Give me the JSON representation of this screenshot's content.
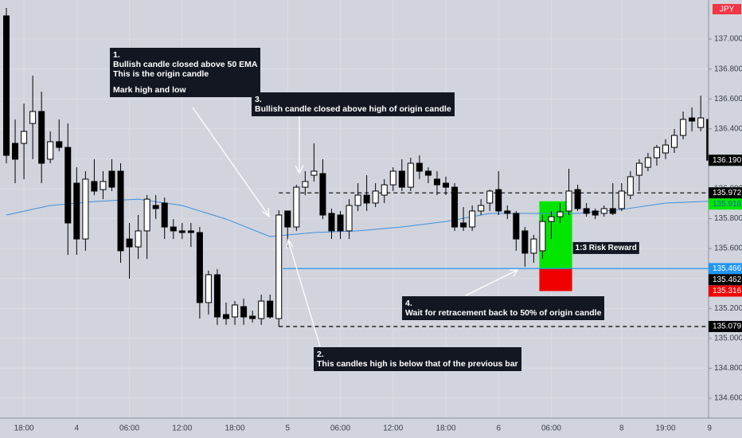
{
  "chart_data": {
    "type": "candlestick",
    "symbol": "JPY",
    "categories": [
      null,
      null,
      "18:00",
      null,
      null,
      null,
      null,
      null,
      "4",
      null,
      null,
      null,
      null,
      null,
      "06:00",
      null,
      null,
      null,
      null,
      null,
      "12:00",
      null,
      null,
      null,
      null,
      null,
      "18:00",
      null,
      null,
      null,
      null,
      null,
      "5",
      null,
      null,
      null,
      null,
      null,
      "06:00",
      null,
      null,
      null,
      null,
      null,
      "12:00",
      null,
      null,
      null,
      null,
      null,
      "18:00",
      null,
      null,
      null,
      null,
      null,
      "6",
      null,
      null,
      null,
      null,
      null,
      "06:00",
      null,
      null,
      null,
      null,
      null,
      null,
      null,
      "8",
      null,
      null,
      null,
      null,
      "19:00",
      null,
      null,
      null,
      null,
      "9"
    ],
    "open": [
      137.155,
      136.303,
      136.303,
      136.436,
      136.516,
      136.197,
      136.314,
      136.276,
      136.037,
      135.664,
      136.048,
      135.994,
      136.117,
      136.117,
      135.664,
      135.611,
      135.718,
      135.888,
      135.904,
      135.744,
      135.718,
      135.718,
      135.707,
      135.239,
      135.425,
      135.159,
      135.143,
      135.212,
      135.148,
      135.132,
      135.249,
      135.132,
      135.851,
      135.744,
      136.01,
      136.09,
      136.101,
      135.835,
      135.824,
      135.718,
      135.888,
      135.957,
      135.904,
      135.957,
      136.026,
      136.117,
      136.01,
      136.17,
      136.117,
      136.064,
      136.037,
      136.01,
      135.771,
      135.744,
      135.851,
      135.904,
      135.994,
      135.851,
      135.835,
      135.718,
      135.569,
      135.585,
      135.781,
      135.813,
      135.851,
      135.994,
      135.867,
      135.851,
      135.835,
      135.867,
      135.867,
      135.957,
      136.09,
      136.143,
      136.207,
      136.239,
      136.276,
      136.356,
      136.473,
      136.409,
      136.463
    ],
    "high": [
      137.208,
      136.463,
      136.569,
      136.755,
      136.649,
      136.383,
      136.463,
      136.436,
      136.143,
      136.117,
      136.197,
      136.117,
      136.197,
      136.17,
      135.771,
      135.824,
      135.957,
      135.957,
      135.941,
      135.797,
      135.771,
      135.771,
      135.744,
      135.452,
      135.462,
      135.239,
      135.249,
      135.265,
      135.185,
      135.292,
      135.292,
      135.856,
      135.845,
      136.026,
      136.117,
      136.303,
      136.197,
      135.867,
      135.851,
      135.93,
      136.037,
      136.09,
      136.037,
      136.064,
      136.143,
      136.197,
      136.207,
      136.223,
      136.143,
      136.117,
      136.08,
      136.037,
      135.877,
      135.888,
      135.93,
      135.994,
      136.117,
      135.888,
      135.851,
      135.744,
      135.691,
      135.824,
      135.851,
      135.904,
      136.133,
      136.026,
      135.904,
      135.867,
      135.888,
      136.037,
      136.037,
      136.117,
      136.197,
      136.239,
      136.292,
      136.33,
      136.399,
      136.516,
      136.543,
      136.622,
      136.473
    ],
    "low": [
      136.17,
      136.037,
      136.064,
      136.197,
      136.037,
      136.17,
      136.25,
      135.558,
      135.558,
      135.585,
      135.957,
      135.93,
      135.984,
      135.505,
      135.398,
      135.531,
      135.531,
      135.797,
      135.664,
      135.664,
      135.664,
      135.611,
      135.132,
      135.159,
      135.09,
      135.09,
      135.09,
      135.09,
      135.106,
      135.09,
      135.132,
      135.079,
      135.611,
      135.718,
      135.957,
      136.048,
      135.797,
      135.664,
      135.664,
      135.664,
      135.851,
      135.851,
      135.877,
      135.904,
      135.984,
      135.984,
      135.984,
      136.064,
      136.037,
      135.957,
      135.957,
      135.718,
      135.718,
      135.718,
      135.824,
      135.851,
      135.824,
      135.797,
      135.585,
      135.478,
      135.505,
      135.531,
      135.664,
      135.771,
      135.824,
      135.851,
      135.813,
      135.797,
      135.813,
      135.824,
      135.851,
      135.93,
      135.984,
      136.117,
      136.154,
      136.197,
      136.239,
      136.33,
      136.383,
      136.383,
      136.17
    ],
    "close": [
      136.223,
      136.197,
      136.383,
      136.516,
      136.17,
      136.314,
      136.276,
      135.771,
      135.664,
      136.064,
      135.984,
      136.048,
      136.01,
      135.585,
      135.611,
      135.718,
      135.93,
      135.867,
      135.744,
      135.718,
      135.707,
      135.707,
      135.239,
      135.425,
      135.143,
      135.132,
      135.223,
      135.143,
      135.132,
      135.249,
      135.143,
      135.824,
      135.744,
      136.01,
      136.048,
      136.117,
      135.824,
      135.718,
      135.718,
      135.888,
      135.957,
      135.904,
      135.984,
      136.026,
      136.117,
      136.01,
      136.17,
      136.117,
      136.09,
      136.026,
      136.01,
      135.744,
      135.744,
      135.851,
      135.888,
      135.984,
      135.851,
      135.835,
      135.664,
      135.569,
      135.664,
      135.781,
      135.813,
      135.845,
      135.984,
      135.867,
      135.835,
      135.824,
      135.867,
      135.835,
      135.984,
      136.08,
      136.17,
      136.207,
      136.276,
      136.292,
      136.356,
      136.463,
      136.452,
      136.473,
      136.19
    ],
    "up_color": "#ffffff",
    "down_color": "#000000",
    "ema": {
      "color": "#3d8fe0",
      "x": [
        0,
        5,
        10,
        15,
        20,
        25,
        30,
        35,
        40,
        45,
        50,
        55,
        60,
        65,
        70,
        75,
        80
      ],
      "values": [
        135.824,
        135.888,
        135.914,
        135.93,
        135.888,
        135.797,
        135.68,
        135.707,
        135.718,
        135.744,
        135.781,
        135.835,
        135.835,
        135.835,
        135.861,
        135.904,
        135.916
      ]
    },
    "ylim": [
      134.467,
      137.261
    ],
    "yticks": [
      {
        "value": 134.6,
        "label": "134.600"
      },
      {
        "value": 134.8,
        "label": "134.800"
      },
      {
        "value": 135.0,
        "label": "135.000"
      },
      {
        "value": 135.2,
        "label": "135.200"
      },
      {
        "value": 135.4,
        "label": "135.400"
      },
      {
        "value": 135.6,
        "label": "135.600"
      },
      {
        "value": 135.8,
        "label": "135.800"
      },
      {
        "value": 136.0,
        "label": "136.000"
      },
      {
        "value": 136.2,
        "label": "136.200"
      },
      {
        "value": 136.4,
        "label": "136.400"
      },
      {
        "value": 136.6,
        "label": "136.600"
      },
      {
        "value": 136.8,
        "label": "136.800"
      },
      {
        "value": 137.0,
        "label": "137.000"
      }
    ],
    "grid": true,
    "levels": [
      {
        "value": 135.972,
        "label": "135.972"
      },
      {
        "value": 135.079,
        "label": "135.079"
      }
    ],
    "last_price": {
      "value": 136.19,
      "label": "136.190",
      "color": "#000000"
    },
    "other_price": {
      "value": 135.462,
      "label": "135.462",
      "color": "#000000"
    },
    "position": {
      "label": "1:3 Risk Reward",
      "start": 61,
      "end": 64,
      "entry": {
        "value": 135.466,
        "label": "135.466",
        "color": "#2196f3"
      },
      "target": {
        "value": 135.916,
        "label": "135.916",
        "color": "#00e600"
      },
      "stop": {
        "value": 135.316,
        "label": "135.316",
        "color": "#f00000"
      }
    },
    "annotations": [
      {
        "lines": [
          "1.",
          "Bullish candle closed above 50 EMA",
          "This is the origin candle",
          "Mark high and low"
        ]
      },
      {
        "lines": [
          "2.",
          "This candles high is below that of the previous bar"
        ]
      },
      {
        "lines": [
          "3.",
          "Bullish candle closed above high of origin candle"
        ]
      },
      {
        "lines": [
          "4.",
          "Wait for retracement back to 50% of origin candle"
        ]
      }
    ]
  }
}
